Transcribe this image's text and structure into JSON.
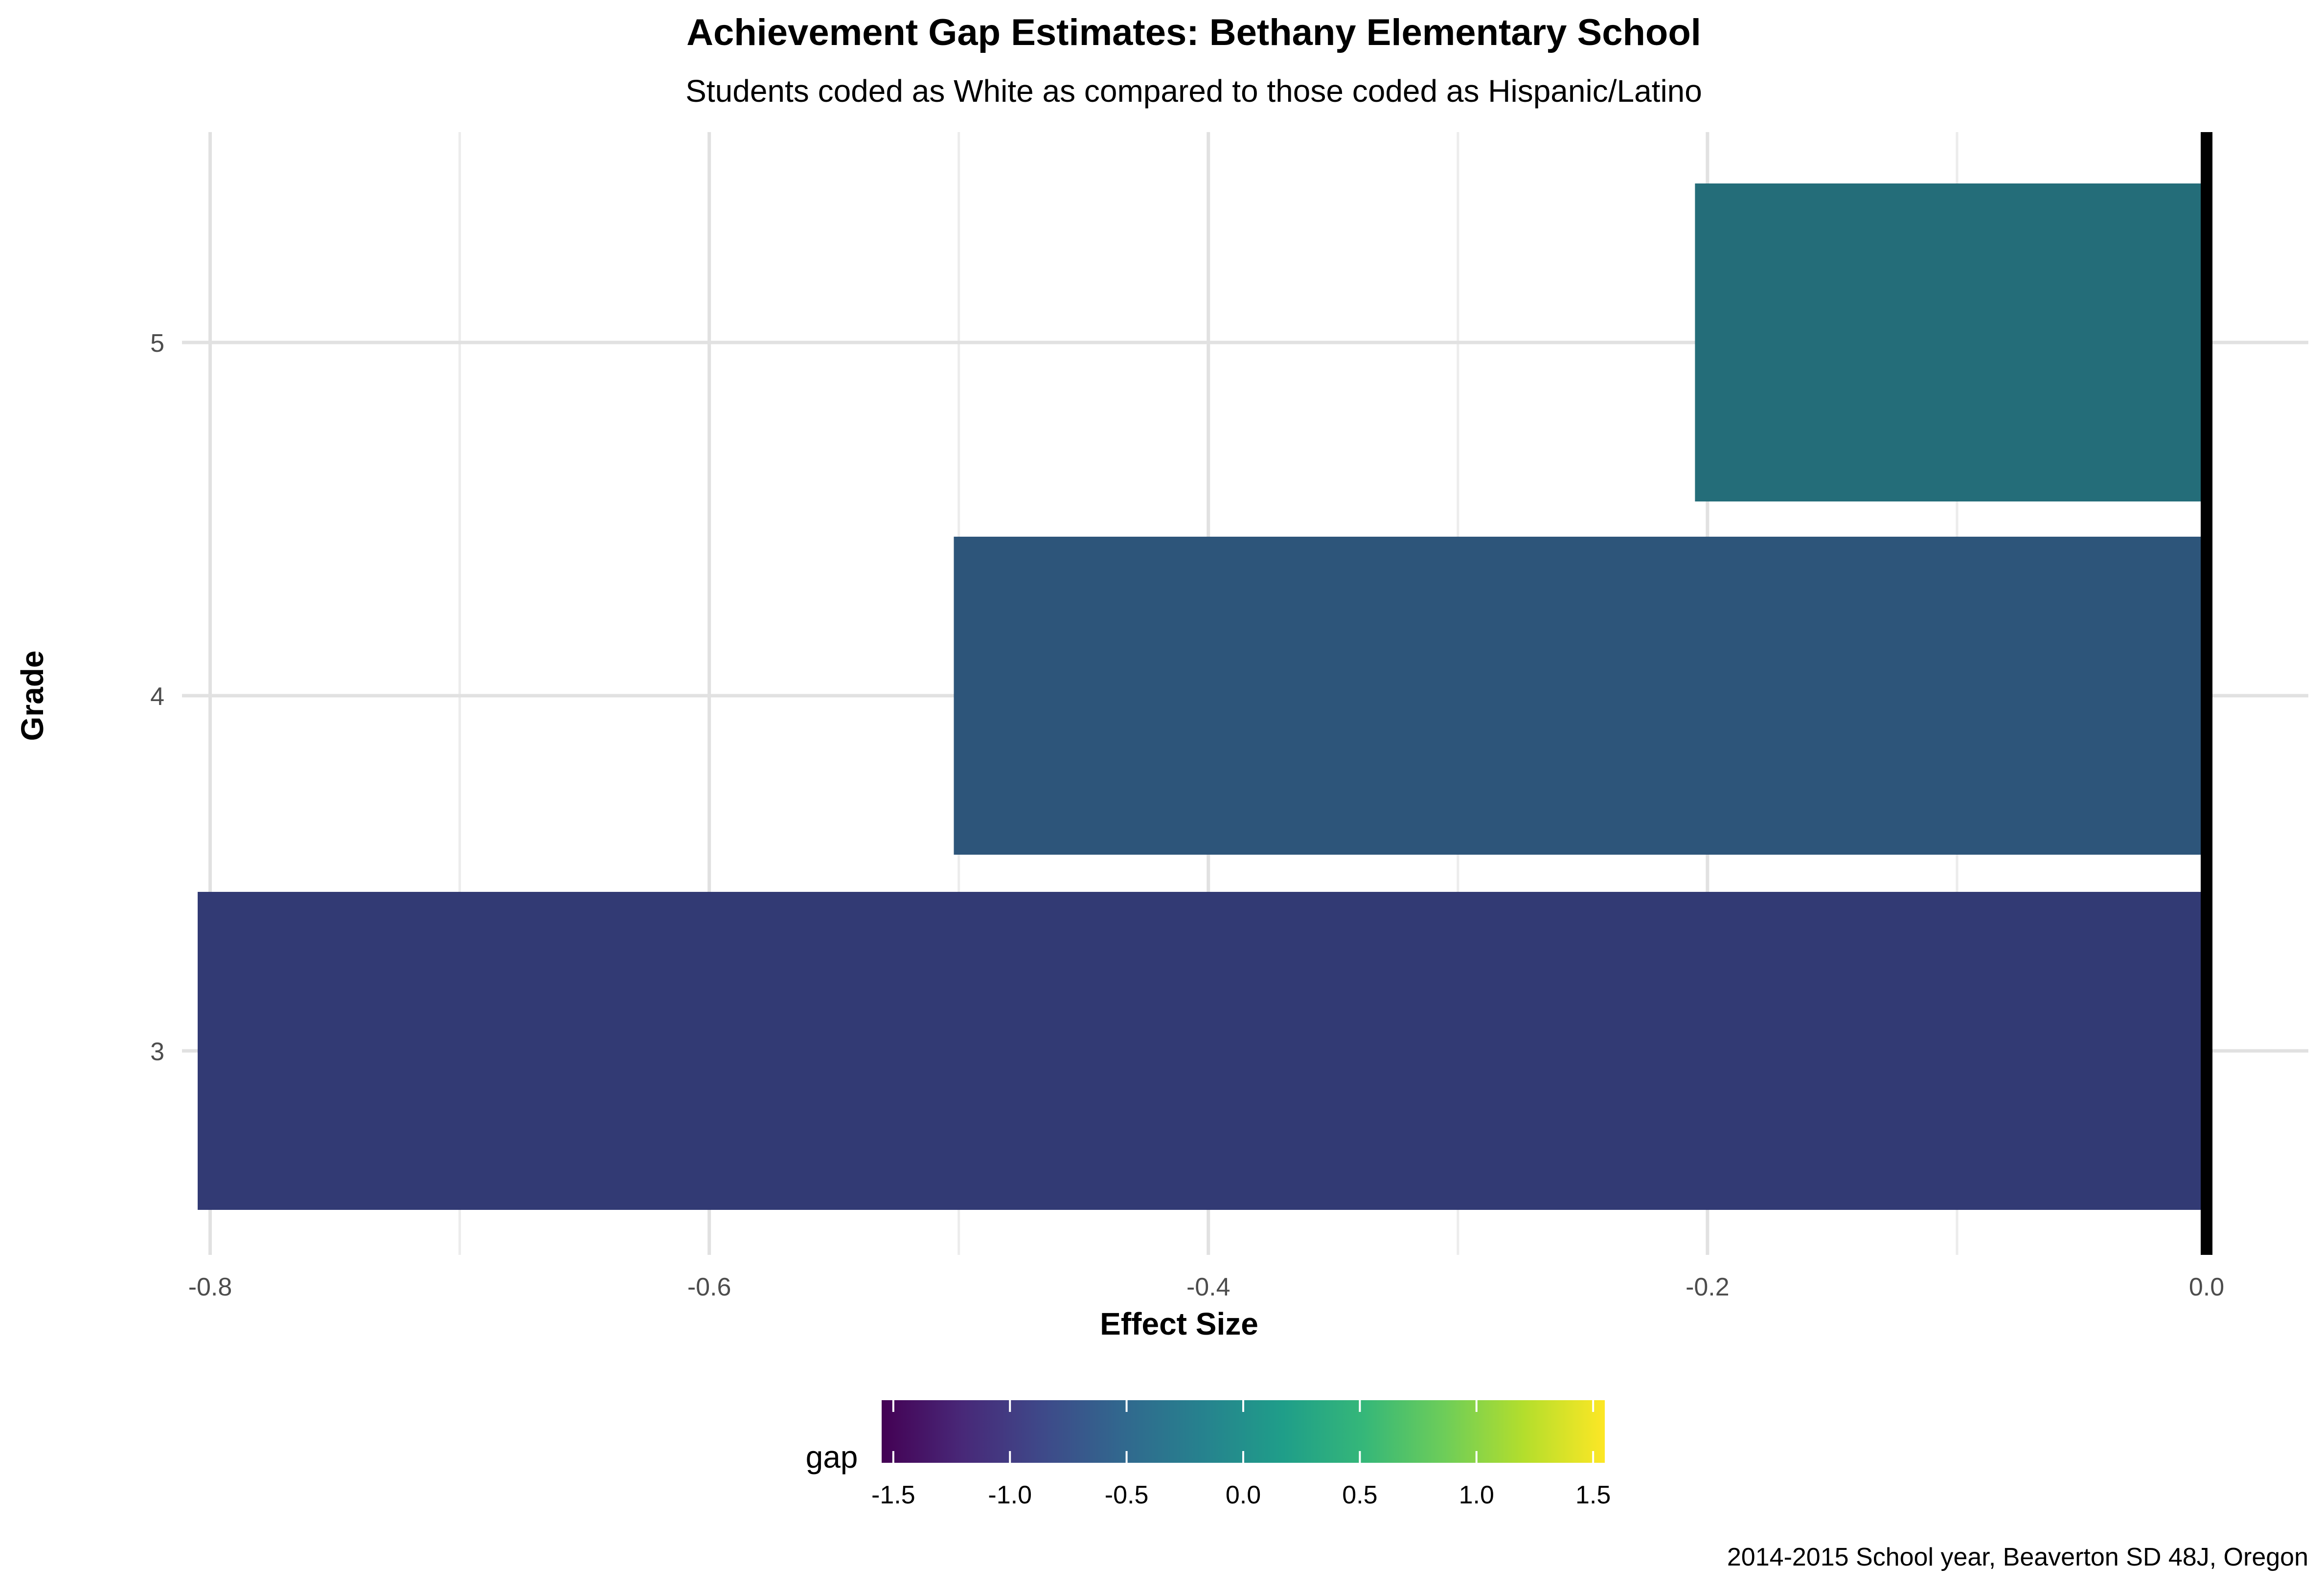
{
  "chart_data": {
    "type": "bar",
    "orientation": "horizontal",
    "title": "Achievement Gap Estimates: Bethany Elementary School",
    "subtitle": "Students coded as White as compared to those coded as Hispanic/Latino",
    "xlabel": "Effect Size",
    "ylabel": "Grade",
    "caption": "2014-2015 School year, Beaverton SD 48J, Oregon",
    "categories": [
      "3",
      "4",
      "5"
    ],
    "values": [
      -0.805,
      -0.502,
      -0.205
    ],
    "bar_colors": [
      "#323A74",
      "#2D557A",
      "#246D79"
    ],
    "xlim": [
      -0.805,
      0.0
    ],
    "x_ticks": [
      -0.8,
      -0.6,
      -0.4,
      -0.2,
      0.0
    ],
    "x_tick_labels": [
      "-0.8",
      "-0.6",
      "-0.4",
      "-0.2",
      "0.0"
    ],
    "reference_line": 0.0,
    "grid": true,
    "legend": {
      "title": "gap",
      "position": "bottom",
      "type": "colorbar",
      "range": [
        -1.55,
        1.55
      ],
      "ticks": [
        -1.5,
        -1.0,
        -0.5,
        0.0,
        0.5,
        1.0,
        1.5
      ],
      "tick_labels": [
        "-1.5",
        "-1.0",
        "-0.5",
        "0.0",
        "0.5",
        "1.0",
        "1.5"
      ],
      "colors": [
        "#440154",
        "#482878",
        "#3E4989",
        "#31688E",
        "#26828E",
        "#1F9E89",
        "#35B779",
        "#6DCD59",
        "#B4DE2C",
        "#FDE725"
      ]
    }
  }
}
